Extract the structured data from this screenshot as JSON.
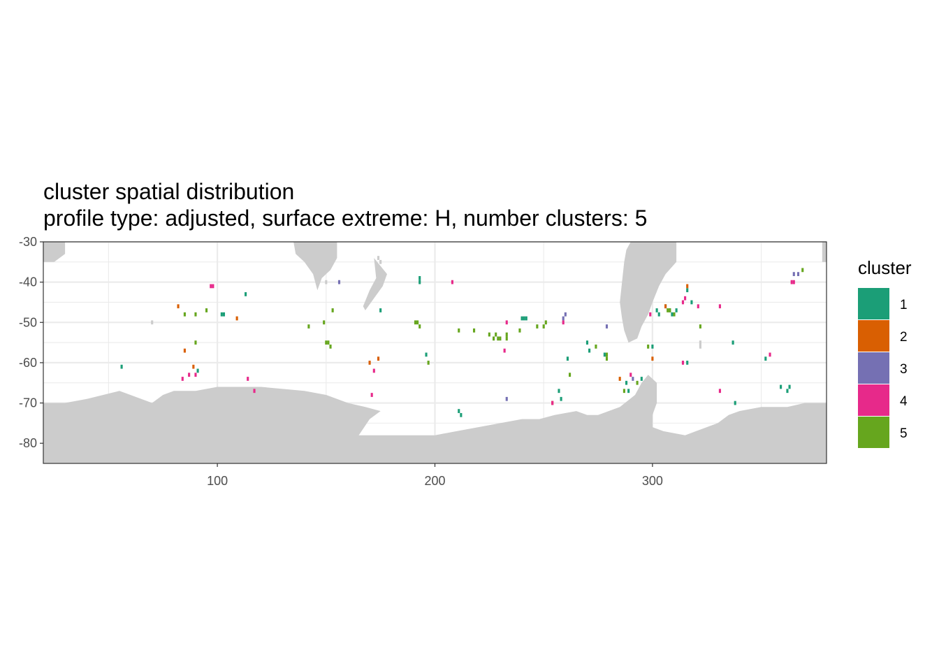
{
  "title": "cluster spatial distribution",
  "subtitle": "profile type: adjusted, surface extreme: H, number clusters: 5",
  "legend": {
    "title": "cluster",
    "entries": [
      {
        "label": "1",
        "color": "#1b9e77"
      },
      {
        "label": "2",
        "color": "#d95f02"
      },
      {
        "label": "3",
        "color": "#7570b3"
      },
      {
        "label": "4",
        "color": "#e7298a"
      },
      {
        "label": "5",
        "color": "#66a61e"
      }
    ]
  },
  "colors": {
    "land": "#cccccc",
    "grid": "#ebebeb",
    "panel_border": "#333333",
    "background": "#ffffff"
  },
  "chart_data": {
    "type": "heatmap",
    "xlim": [
      20,
      380
    ],
    "ylim": [
      -85,
      -30
    ],
    "x_ticks": [
      100,
      200,
      300
    ],
    "x_tick_labels": [
      "100",
      "200",
      "300"
    ],
    "y_ticks": [
      -30,
      -40,
      -50,
      -60,
      -70,
      -80
    ],
    "y_tick_labels": [
      "-30",
      "-40",
      "-50",
      "-60",
      "-70",
      "-80"
    ],
    "grid": true,
    "legend_position": "right",
    "cell_size": [
      1,
      1
    ],
    "land_polygons": [
      [
        [
          20,
          -85
        ],
        [
          380,
          -85
        ],
        [
          380,
          -70
        ],
        [
          370,
          -70
        ],
        [
          362,
          -71
        ],
        [
          350,
          -71
        ],
        [
          340,
          -72
        ],
        [
          335,
          -73
        ],
        [
          330,
          -75
        ],
        [
          325,
          -76
        ],
        [
          320,
          -77
        ],
        [
          315,
          -78
        ],
        [
          305,
          -77
        ],
        [
          300,
          -76
        ],
        [
          300,
          -73
        ],
        [
          302,
          -70
        ],
        [
          302,
          -65
        ],
        [
          298,
          -63
        ],
        [
          295,
          -65
        ],
        [
          292,
          -68
        ],
        [
          285,
          -71
        ],
        [
          275,
          -73
        ],
        [
          270,
          -73
        ],
        [
          265,
          -72
        ],
        [
          255,
          -73
        ],
        [
          248,
          -74
        ],
        [
          240,
          -74
        ],
        [
          230,
          -75
        ],
        [
          220,
          -76
        ],
        [
          210,
          -77
        ],
        [
          200,
          -78
        ],
        [
          185,
          -78
        ],
        [
          170,
          -78
        ],
        [
          165,
          -78
        ],
        [
          170,
          -74
        ],
        [
          175,
          -72
        ],
        [
          168,
          -71
        ],
        [
          160,
          -70
        ],
        [
          150,
          -68
        ],
        [
          140,
          -67
        ],
        [
          120,
          -66
        ],
        [
          100,
          -66
        ],
        [
          90,
          -67
        ],
        [
          80,
          -67
        ],
        [
          75,
          -68
        ],
        [
          70,
          -70
        ],
        [
          60,
          -68
        ],
        [
          55,
          -67
        ],
        [
          40,
          -69
        ],
        [
          30,
          -70
        ],
        [
          20,
          -70
        ]
      ],
      [
        [
          290,
          -30
        ],
        [
          311,
          -30
        ],
        [
          311,
          -35
        ],
        [
          306,
          -38
        ],
        [
          303,
          -41
        ],
        [
          300,
          -45
        ],
        [
          298,
          -48
        ],
        [
          295,
          -51
        ],
        [
          293,
          -54
        ],
        [
          289,
          -55
        ],
        [
          287,
          -52
        ],
        [
          286,
          -49
        ],
        [
          285,
          -45
        ],
        [
          286,
          -40
        ],
        [
          287,
          -35
        ],
        [
          288,
          -32
        ]
      ],
      [
        [
          135,
          -30
        ],
        [
          155,
          -30
        ],
        [
          155,
          -34
        ],
        [
          152,
          -37
        ],
        [
          148,
          -39
        ],
        [
          146,
          -42
        ],
        [
          144,
          -38
        ],
        [
          140,
          -35
        ],
        [
          136,
          -33
        ]
      ],
      [
        [
          20,
          -30
        ],
        [
          30,
          -30
        ],
        [
          30,
          -33
        ],
        [
          25,
          -35
        ],
        [
          20,
          -35
        ]
      ],
      [
        [
          378,
          -30
        ],
        [
          380,
          -30
        ],
        [
          380,
          -35
        ],
        [
          378,
          -35
        ]
      ],
      [
        [
          172,
          -34
        ],
        [
          175,
          -36
        ],
        [
          178,
          -38
        ],
        [
          176,
          -41
        ],
        [
          172,
          -44
        ],
        [
          168,
          -47
        ],
        [
          167,
          -46
        ],
        [
          170,
          -42
        ],
        [
          173,
          -39
        ]
      ]
    ],
    "land_cells": [
      [
        70,
        -50
      ],
      [
        174,
        -34
      ],
      [
        175,
        -35
      ],
      [
        322,
        -55
      ],
      [
        322,
        -56
      ],
      [
        150,
        -40
      ]
    ],
    "points": [
      {
        "x": 56,
        "y": -61,
        "cluster": 1
      },
      {
        "x": 91,
        "y": -62,
        "cluster": 1
      },
      {
        "x": 102,
        "y": -48,
        "cluster": 1
      },
      {
        "x": 103,
        "y": -48,
        "cluster": 1
      },
      {
        "x": 113,
        "y": -43,
        "cluster": 1
      },
      {
        "x": 175,
        "y": -47,
        "cluster": 1
      },
      {
        "x": 193,
        "y": -39,
        "cluster": 1
      },
      {
        "x": 193,
        "y": -40,
        "cluster": 1
      },
      {
        "x": 196,
        "y": -58,
        "cluster": 1
      },
      {
        "x": 211,
        "y": -72,
        "cluster": 1
      },
      {
        "x": 212,
        "y": -73,
        "cluster": 1
      },
      {
        "x": 240,
        "y": -49,
        "cluster": 1
      },
      {
        "x": 241,
        "y": -49,
        "cluster": 1
      },
      {
        "x": 242,
        "y": -49,
        "cluster": 1
      },
      {
        "x": 257,
        "y": -67,
        "cluster": 1
      },
      {
        "x": 258,
        "y": -69,
        "cluster": 1
      },
      {
        "x": 261,
        "y": -59,
        "cluster": 1
      },
      {
        "x": 270,
        "y": -55,
        "cluster": 1
      },
      {
        "x": 271,
        "y": -57,
        "cluster": 1
      },
      {
        "x": 278,
        "y": -58,
        "cluster": 1
      },
      {
        "x": 288,
        "y": -65,
        "cluster": 1
      },
      {
        "x": 289,
        "y": -67,
        "cluster": 1
      },
      {
        "x": 295,
        "y": -64,
        "cluster": 1
      },
      {
        "x": 300,
        "y": -56,
        "cluster": 1
      },
      {
        "x": 302,
        "y": -47,
        "cluster": 1
      },
      {
        "x": 303,
        "y": -48,
        "cluster": 1
      },
      {
        "x": 306,
        "y": -46,
        "cluster": 1
      },
      {
        "x": 308,
        "y": -47,
        "cluster": 1
      },
      {
        "x": 309,
        "y": -48,
        "cluster": 1
      },
      {
        "x": 311,
        "y": -47,
        "cluster": 1
      },
      {
        "x": 316,
        "y": -42,
        "cluster": 1
      },
      {
        "x": 316,
        "y": -60,
        "cluster": 1
      },
      {
        "x": 318,
        "y": -45,
        "cluster": 1
      },
      {
        "x": 337,
        "y": -55,
        "cluster": 1
      },
      {
        "x": 338,
        "y": -70,
        "cluster": 1
      },
      {
        "x": 352,
        "y": -59,
        "cluster": 1
      },
      {
        "x": 359,
        "y": -66,
        "cluster": 1
      },
      {
        "x": 362,
        "y": -67,
        "cluster": 1
      },
      {
        "x": 363,
        "y": -66,
        "cluster": 1
      },
      {
        "x": 82,
        "y": -46,
        "cluster": 2
      },
      {
        "x": 85,
        "y": -57,
        "cluster": 2
      },
      {
        "x": 89,
        "y": -61,
        "cluster": 2
      },
      {
        "x": 109,
        "y": -49,
        "cluster": 2
      },
      {
        "x": 170,
        "y": -60,
        "cluster": 2
      },
      {
        "x": 174,
        "y": -59,
        "cluster": 2
      },
      {
        "x": 254,
        "y": -70,
        "cluster": 2
      },
      {
        "x": 285,
        "y": -64,
        "cluster": 2
      },
      {
        "x": 300,
        "y": -59,
        "cluster": 2
      },
      {
        "x": 306,
        "y": -46,
        "cluster": 2
      },
      {
        "x": 316,
        "y": -41,
        "cluster": 2
      },
      {
        "x": 156,
        "y": -40,
        "cluster": 3
      },
      {
        "x": 233,
        "y": -69,
        "cluster": 3
      },
      {
        "x": 259,
        "y": -49,
        "cluster": 3
      },
      {
        "x": 260,
        "y": -48,
        "cluster": 3
      },
      {
        "x": 279,
        "y": -51,
        "cluster": 3
      },
      {
        "x": 291,
        "y": -64,
        "cluster": 3
      },
      {
        "x": 365,
        "y": -38,
        "cluster": 3
      },
      {
        "x": 367,
        "y": -38,
        "cluster": 3
      },
      {
        "x": 84,
        "y": -64,
        "cluster": 4
      },
      {
        "x": 87,
        "y": -63,
        "cluster": 4
      },
      {
        "x": 90,
        "y": -63,
        "cluster": 4
      },
      {
        "x": 97,
        "y": -41,
        "cluster": 4
      },
      {
        "x": 98,
        "y": -41,
        "cluster": 4
      },
      {
        "x": 114,
        "y": -64,
        "cluster": 4
      },
      {
        "x": 117,
        "y": -67,
        "cluster": 4
      },
      {
        "x": 171,
        "y": -68,
        "cluster": 4
      },
      {
        "x": 172,
        "y": -62,
        "cluster": 4
      },
      {
        "x": 208,
        "y": -40,
        "cluster": 4
      },
      {
        "x": 232,
        "y": -57,
        "cluster": 4
      },
      {
        "x": 233,
        "y": -50,
        "cluster": 4
      },
      {
        "x": 254,
        "y": -70,
        "cluster": 4
      },
      {
        "x": 259,
        "y": -50,
        "cluster": 4
      },
      {
        "x": 290,
        "y": -63,
        "cluster": 4
      },
      {
        "x": 299,
        "y": -48,
        "cluster": 4
      },
      {
        "x": 314,
        "y": -45,
        "cluster": 4
      },
      {
        "x": 315,
        "y": -44,
        "cluster": 4
      },
      {
        "x": 314,
        "y": -60,
        "cluster": 4
      },
      {
        "x": 321,
        "y": -46,
        "cluster": 4
      },
      {
        "x": 331,
        "y": -46,
        "cluster": 4
      },
      {
        "x": 331,
        "y": -67,
        "cluster": 4
      },
      {
        "x": 354,
        "y": -58,
        "cluster": 4
      },
      {
        "x": 364,
        "y": -40,
        "cluster": 4
      },
      {
        "x": 365,
        "y": -40,
        "cluster": 4
      },
      {
        "x": 85,
        "y": -48,
        "cluster": 5
      },
      {
        "x": 90,
        "y": -48,
        "cluster": 5
      },
      {
        "x": 90,
        "y": -55,
        "cluster": 5
      },
      {
        "x": 95,
        "y": -47,
        "cluster": 5
      },
      {
        "x": 142,
        "y": -51,
        "cluster": 5
      },
      {
        "x": 149,
        "y": -50,
        "cluster": 5
      },
      {
        "x": 150,
        "y": -55,
        "cluster": 5
      },
      {
        "x": 151,
        "y": -55,
        "cluster": 5
      },
      {
        "x": 152,
        "y": -56,
        "cluster": 5
      },
      {
        "x": 153,
        "y": -47,
        "cluster": 5
      },
      {
        "x": 191,
        "y": -50,
        "cluster": 5
      },
      {
        "x": 192,
        "y": -50,
        "cluster": 5
      },
      {
        "x": 193,
        "y": -51,
        "cluster": 5
      },
      {
        "x": 197,
        "y": -60,
        "cluster": 5
      },
      {
        "x": 211,
        "y": -52,
        "cluster": 5
      },
      {
        "x": 218,
        "y": -52,
        "cluster": 5
      },
      {
        "x": 225,
        "y": -53,
        "cluster": 5
      },
      {
        "x": 227,
        "y": -54,
        "cluster": 5
      },
      {
        "x": 228,
        "y": -53,
        "cluster": 5
      },
      {
        "x": 229,
        "y": -54,
        "cluster": 5
      },
      {
        "x": 230,
        "y": -54,
        "cluster": 5
      },
      {
        "x": 233,
        "y": -53,
        "cluster": 5
      },
      {
        "x": 233,
        "y": -54,
        "cluster": 5
      },
      {
        "x": 239,
        "y": -52,
        "cluster": 5
      },
      {
        "x": 247,
        "y": -51,
        "cluster": 5
      },
      {
        "x": 250,
        "y": -51,
        "cluster": 5
      },
      {
        "x": 251,
        "y": -50,
        "cluster": 5
      },
      {
        "x": 262,
        "y": -63,
        "cluster": 5
      },
      {
        "x": 274,
        "y": -56,
        "cluster": 5
      },
      {
        "x": 279,
        "y": -59,
        "cluster": 5
      },
      {
        "x": 279,
        "y": -58,
        "cluster": 5
      },
      {
        "x": 287,
        "y": -67,
        "cluster": 5
      },
      {
        "x": 293,
        "y": -65,
        "cluster": 5
      },
      {
        "x": 298,
        "y": -56,
        "cluster": 5
      },
      {
        "x": 307,
        "y": -47,
        "cluster": 5
      },
      {
        "x": 308,
        "y": -47,
        "cluster": 5
      },
      {
        "x": 310,
        "y": -48,
        "cluster": 5
      },
      {
        "x": 322,
        "y": -51,
        "cluster": 5
      },
      {
        "x": 369,
        "y": -37,
        "cluster": 5
      }
    ]
  }
}
